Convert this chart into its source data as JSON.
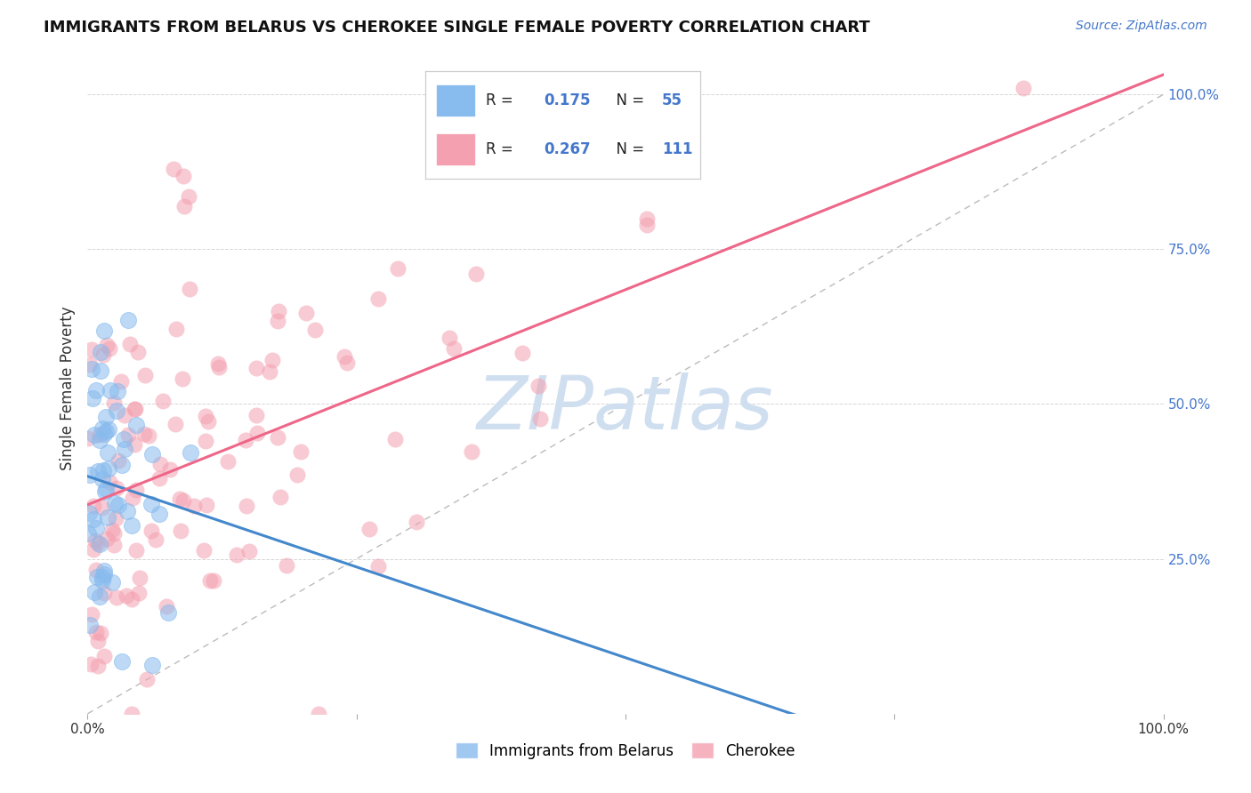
{
  "title": "IMMIGRANTS FROM BELARUS VS CHEROKEE SINGLE FEMALE POVERTY CORRELATION CHART",
  "source": "Source: ZipAtlas.com",
  "ylabel": "Single Female Poverty",
  "legend_label1": "Immigrants from Belarus",
  "legend_label2": "Cherokee",
  "R1": 0.175,
  "N1": 55,
  "R2": 0.267,
  "N2": 111,
  "color_blue": "#88BBEE",
  "color_pink": "#F4A0B0",
  "color_blue_line": "#4488CC",
  "color_pink_line": "#EE6688",
  "color_dashed": "#AAAAAA",
  "watermark_text": "ZIPatlas",
  "watermark_color": "#D0DFF0",
  "background_color": "#FFFFFF",
  "title_fontsize": 13,
  "source_fontsize": 10,
  "ylabel_fontsize": 12,
  "legend_fontsize": 13,
  "tick_fontsize": 11,
  "marker_size": 13,
  "marker_alpha": 0.55,
  "seed1": 7,
  "seed2": 42,
  "xlim": [
    0,
    1
  ],
  "ylim": [
    0,
    1.05
  ]
}
